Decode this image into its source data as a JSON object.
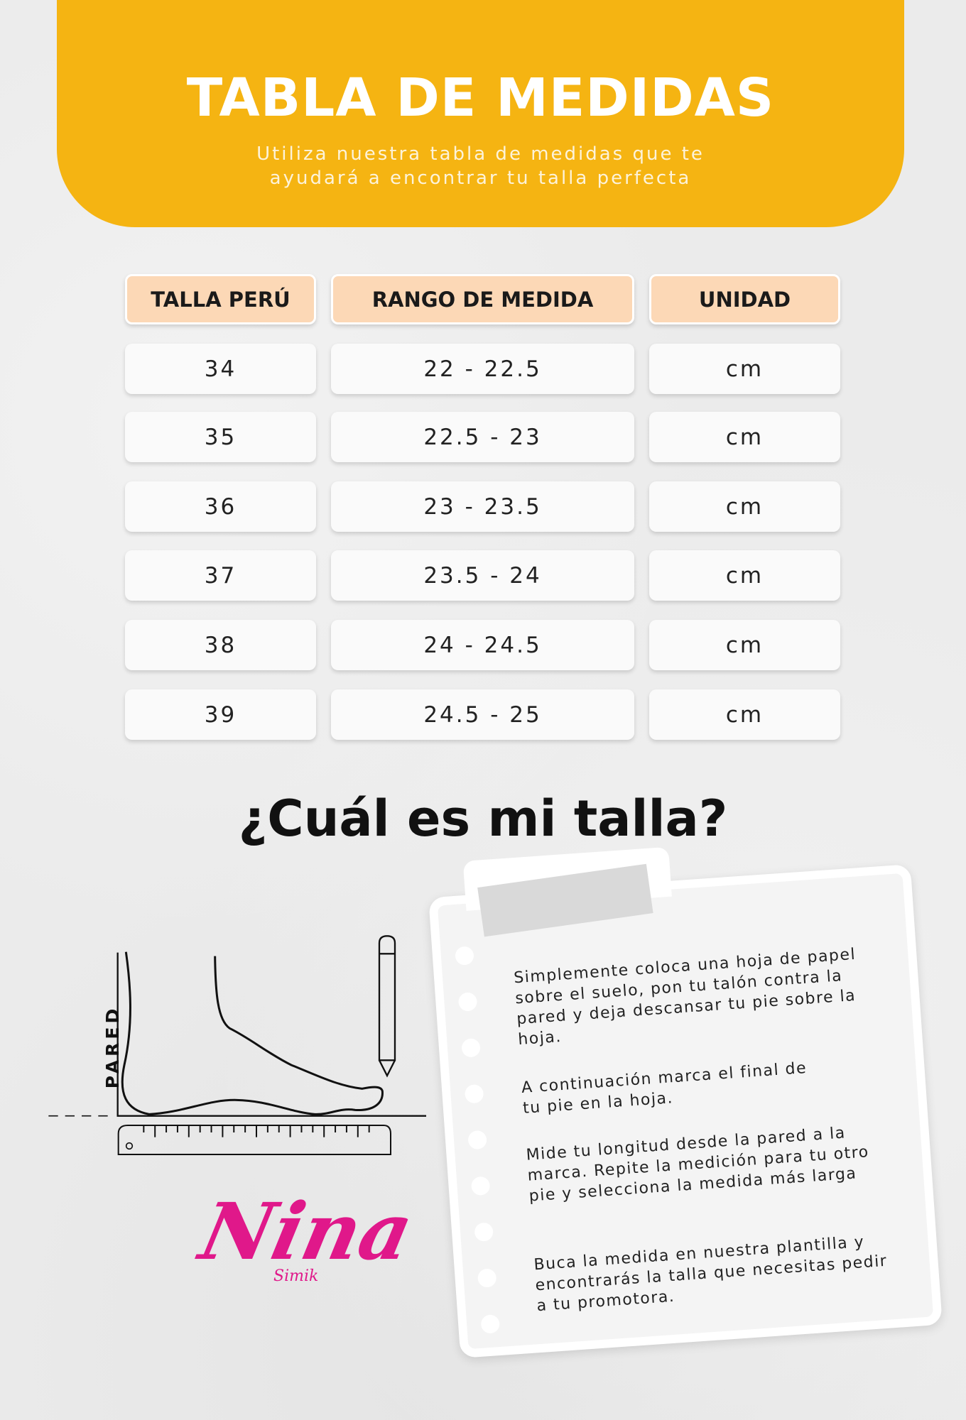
{
  "header": {
    "title": "TABLA DE MEDIDAS",
    "subtitle_line1": "Utiliza nuestra tabla de medidas que te",
    "subtitle_line2": "ayudará a encontrar tu talla perfecta",
    "color": "#f5b412"
  },
  "table": {
    "headers": [
      "TALLA PERÚ",
      "RANGO DE MEDIDA",
      "UNIDAD"
    ],
    "rows": [
      [
        "34",
        "22 - 22.5",
        "cm"
      ],
      [
        "35",
        "22.5 - 23",
        "cm"
      ],
      [
        "36",
        "23 - 23.5",
        "cm"
      ],
      [
        "37",
        "23.5 - 24",
        "cm"
      ],
      [
        "38",
        "24 - 24.5",
        "cm"
      ],
      [
        "39",
        "24.5 - 25",
        "cm"
      ]
    ],
    "header_color": "#fcd8b6"
  },
  "question": "¿Cuál es mi talla?",
  "diagram": {
    "wall_label": "PARED",
    "icons": [
      "foot-outline",
      "pencil",
      "ruler"
    ]
  },
  "instructions": [
    "Simplemente coloca una hoja de papel sobre el suelo, pon tu talón contra la pared y deja descansar tu pie sobre la hoja.",
    "A continuación marca el final de tu pie en la hoja.",
    "Mide tu longitud desde la pared a la marca. Repite la medición para tu otro pie y selecciona la medida más larga",
    "Buca la medida en nuestra plantilla y encontrarás la talla que necesitas pedir a tu promotora."
  ],
  "logo": {
    "name": "Nina",
    "tagline": "Simik",
    "color": "#e0188a"
  }
}
